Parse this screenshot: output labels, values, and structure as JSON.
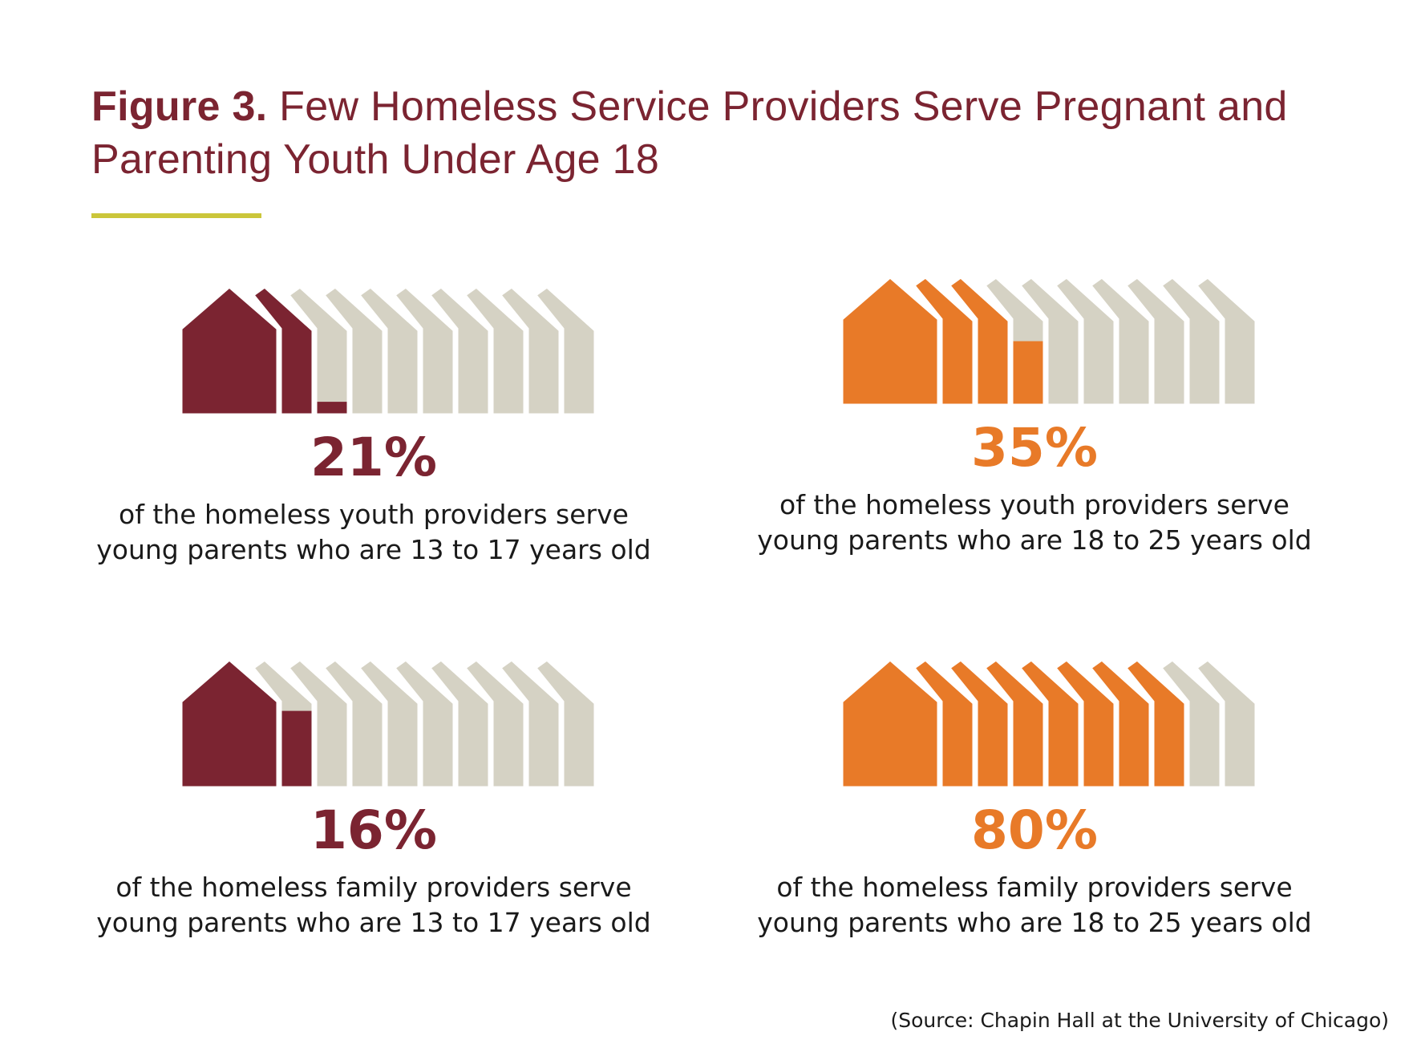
{
  "title": {
    "bold": "Figure 3.",
    "text": " Few Homeless Service Providers Serve Pregnant and Parenting Youth Under Age 18"
  },
  "colors": {
    "maroon": "#7b2431",
    "orange": "#e87a28",
    "empty": "#d5d2c4",
    "accent_rule": "#cbc63a"
  },
  "chart_data": [
    {
      "type": "pictograph",
      "icon": "house-icon",
      "icons_total": 10,
      "value": 21,
      "label": "21%",
      "color": "maroon",
      "line1": "of the homeless youth providers serve",
      "line2": "young parents who are 13 to 17 years old"
    },
    {
      "type": "pictograph",
      "icon": "house-icon",
      "icons_total": 10,
      "value": 35,
      "label": "35%",
      "color": "orange",
      "line1": "of the homeless youth providers serve",
      "line2": "young parents who are 18 to 25 years old"
    },
    {
      "type": "pictograph",
      "icon": "house-icon",
      "icons_total": 10,
      "value": 16,
      "label": "16%",
      "color": "maroon",
      "line1": "of the homeless family providers serve",
      "line2": "young parents who are 13 to 17 years old"
    },
    {
      "type": "pictograph",
      "icon": "house-icon",
      "icons_total": 10,
      "value": 80,
      "label": "80%",
      "color": "orange",
      "line1": "of the homeless family providers serve",
      "line2": "young parents who are 18 to 25 years old"
    }
  ],
  "source": "(Source: Chapin Hall at the University of Chicago)"
}
